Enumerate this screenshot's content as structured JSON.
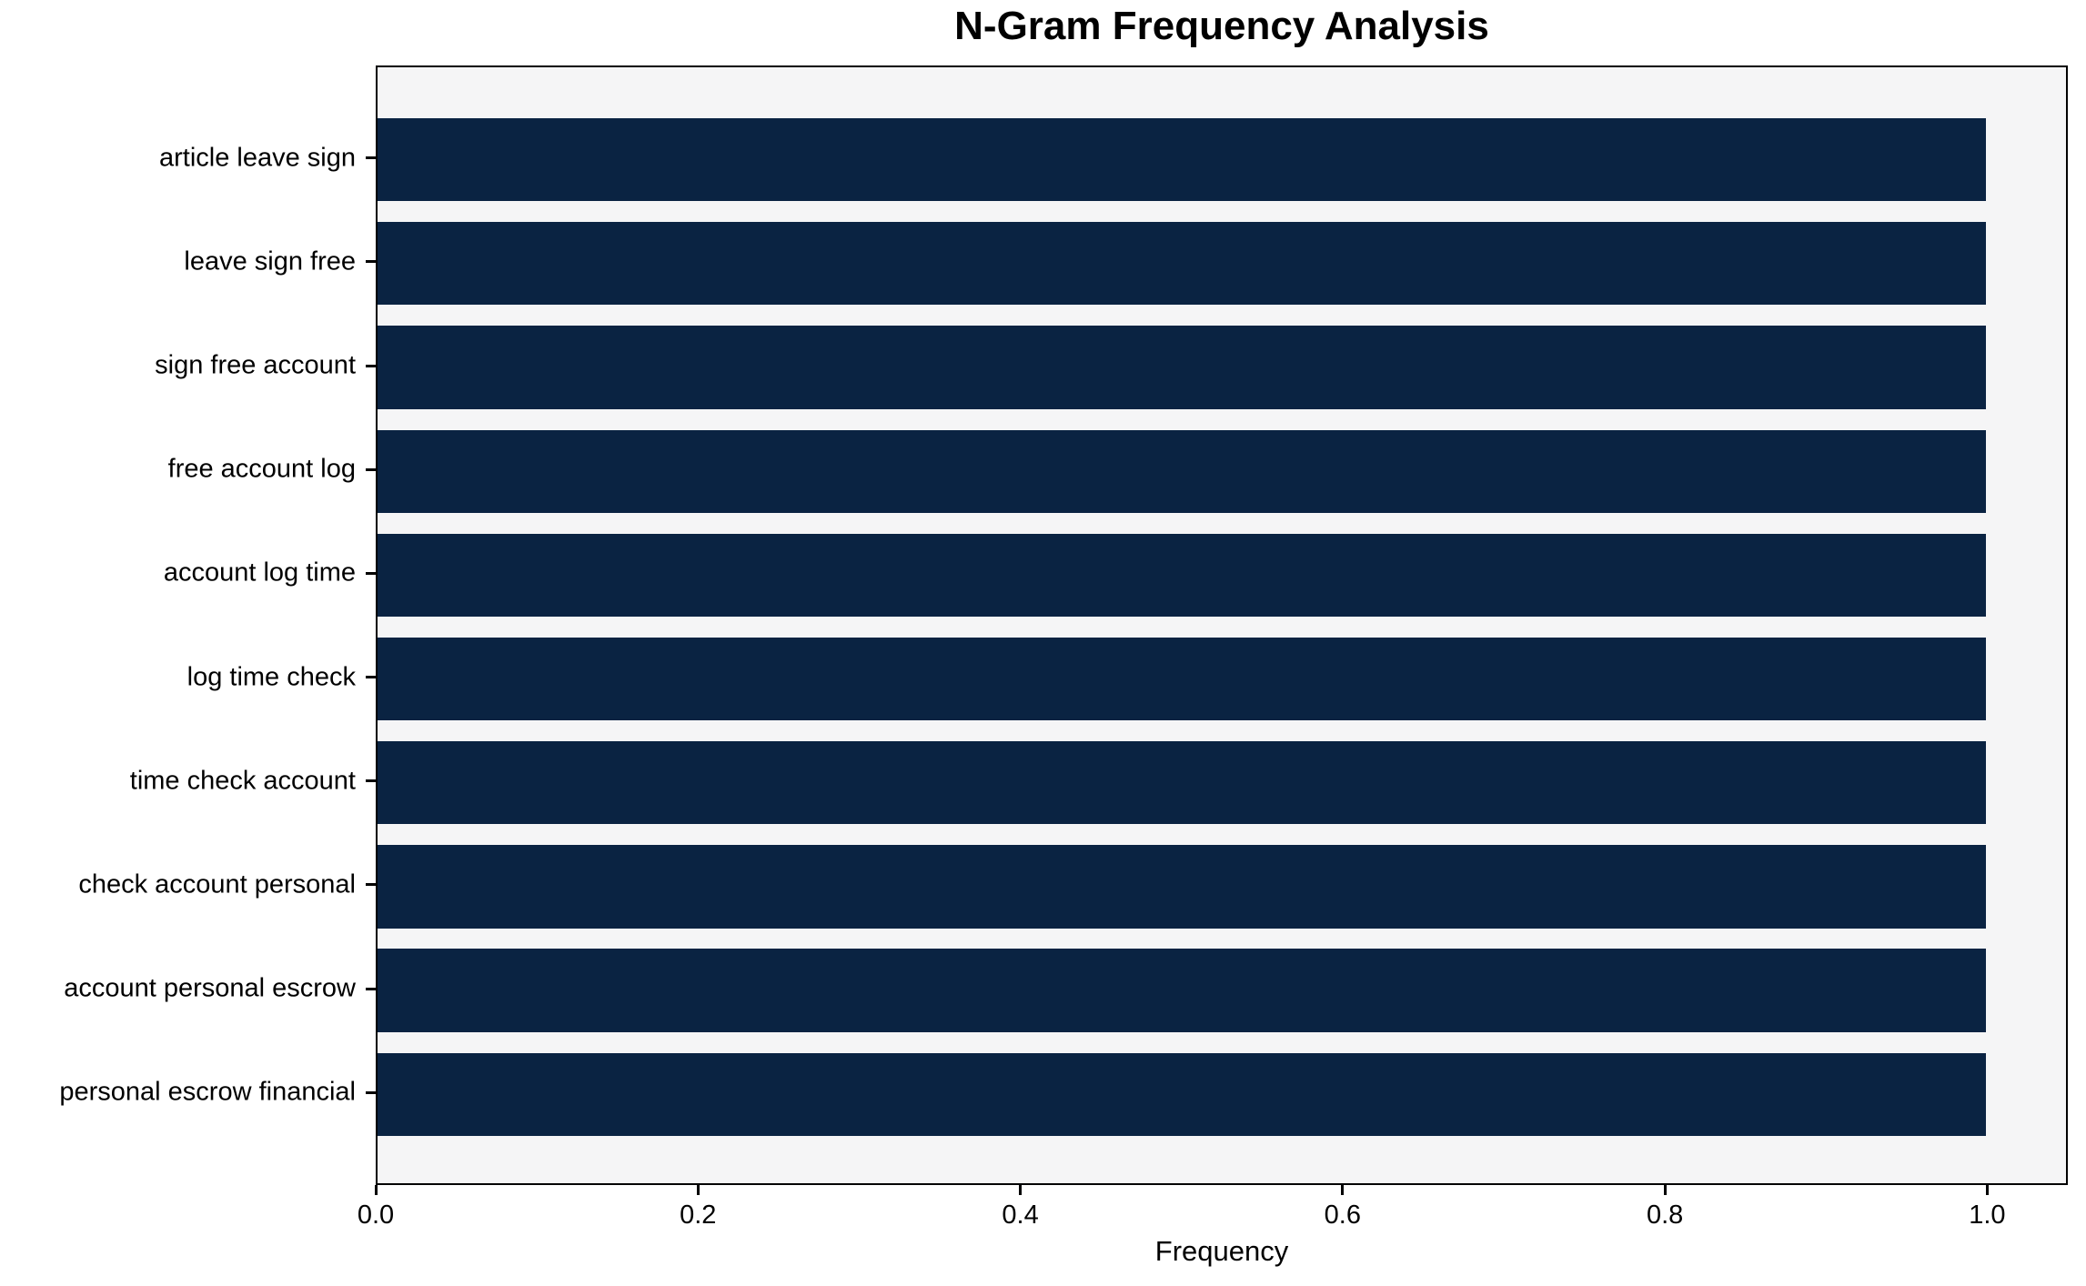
{
  "chart_data": {
    "type": "bar",
    "orientation": "horizontal",
    "title": "N-Gram Frequency Analysis",
    "xlabel": "Frequency",
    "ylabel": "",
    "categories": [
      "article leave sign",
      "leave sign free",
      "sign free account",
      "free account log",
      "account log time",
      "log time check",
      "time check account",
      "check account personal",
      "account personal escrow",
      "personal escrow financial"
    ],
    "values": [
      1.0,
      1.0,
      1.0,
      1.0,
      1.0,
      1.0,
      1.0,
      1.0,
      1.0,
      1.0
    ],
    "xlim": [
      0,
      1.05
    ],
    "xticks": [
      0.0,
      0.2,
      0.4,
      0.6,
      0.8,
      1.0
    ],
    "xtick_labels": [
      "0.0",
      "0.2",
      "0.4",
      "0.6",
      "0.8",
      "1.0"
    ],
    "grid": false,
    "legend": "none",
    "bar_height_fraction": 0.8,
    "colors": {
      "bar": "#0a2342",
      "plot_background": "#f5f5f6",
      "figure_background": "#ffffff",
      "spine": "#000000",
      "text": "#000000"
    }
  }
}
